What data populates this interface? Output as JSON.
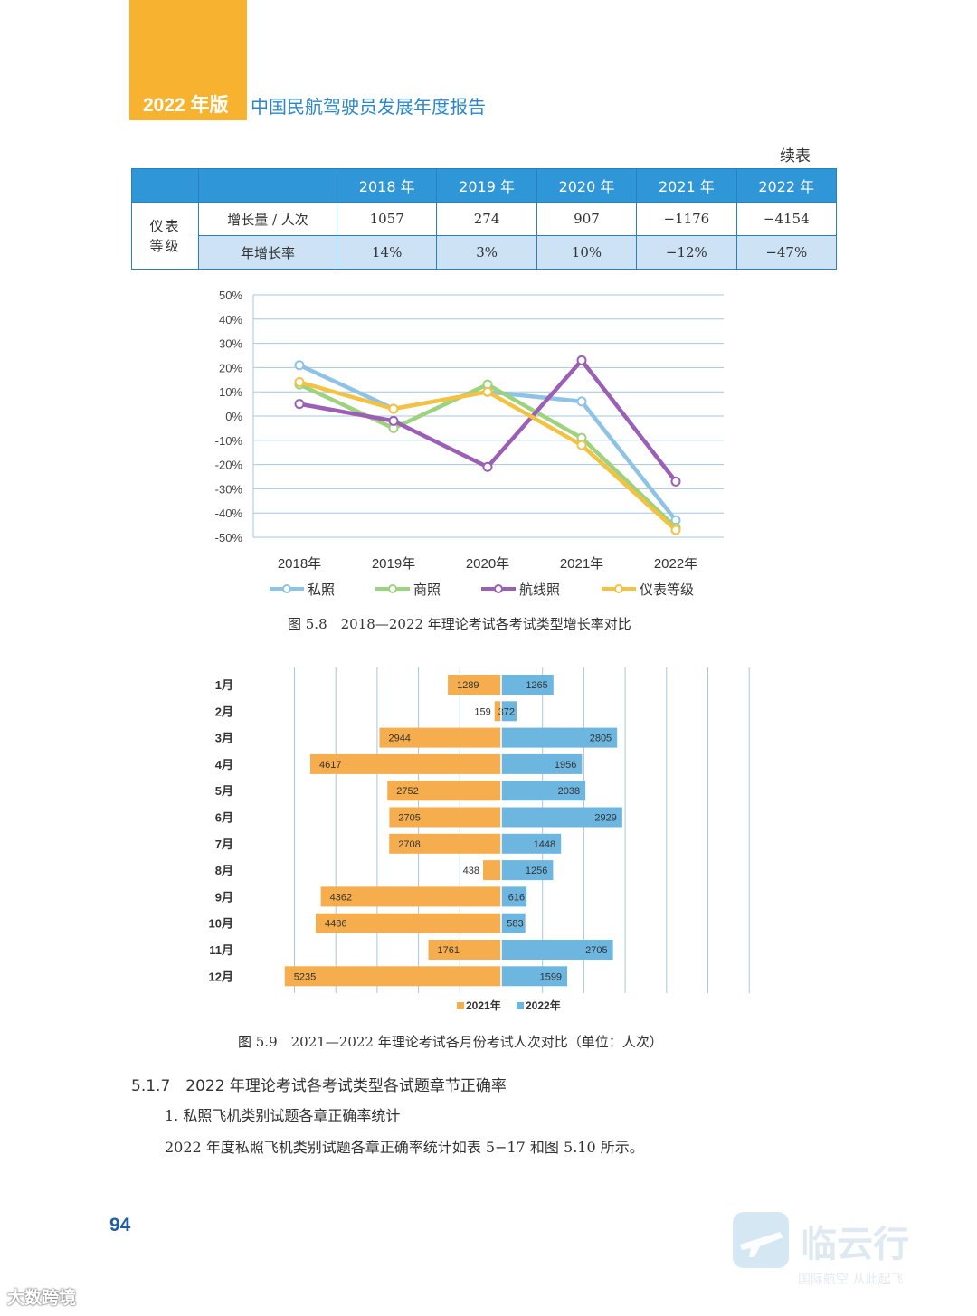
{
  "header": {
    "year": "2022 年版",
    "title": "中国民航驾驶员发展年度报告"
  },
  "table": {
    "continued": "续表",
    "columns": [
      "",
      "",
      "2018 年",
      "2019 年",
      "2020 年",
      "2021 年",
      "2022 年"
    ],
    "group": "仪表等级",
    "rows": [
      {
        "label": "增长量 / 人次",
        "values": [
          "1057",
          "274",
          "907",
          "−1176",
          "−4154"
        ]
      },
      {
        "label": "年增长率",
        "values": [
          "14%",
          "3%",
          "10%",
          "−12%",
          "−47%"
        ]
      }
    ]
  },
  "figure1": {
    "caption": "图 5.8　2018—2022 年理论考试各考试类型增长率对比"
  },
  "figure2": {
    "caption": "图 5.9　2021—2022 年理论考试各月份考试人次对比（单位：人次）"
  },
  "chart_data": [
    {
      "type": "line",
      "title": "",
      "x": [
        "2018年",
        "2019年",
        "2020年",
        "2021年",
        "2022年"
      ],
      "ylim": [
        -50,
        50
      ],
      "yticks": [
        "50%",
        "40%",
        "30%",
        "20%",
        "10%",
        "0%",
        "-10%",
        "-20%",
        "-30%",
        "-40%",
        "-50%"
      ],
      "series": [
        {
          "name": "私照",
          "color": "#8ec3e6",
          "values": [
            21,
            3,
            10,
            6,
            -43
          ]
        },
        {
          "name": "商照",
          "color": "#9dd27e",
          "values": [
            13,
            -5,
            13,
            -9,
            -46
          ]
        },
        {
          "name": "航线照",
          "color": "#9b5fb5",
          "values": [
            5,
            -2,
            -21,
            23,
            -27
          ]
        },
        {
          "name": "仪表等级",
          "color": "#f4c242",
          "values": [
            14,
            3,
            10,
            -12,
            -47
          ]
        }
      ]
    },
    {
      "type": "bar",
      "orientation": "horizontal-diverging",
      "categories": [
        "1月",
        "2月",
        "3月",
        "4月",
        "5月",
        "6月",
        "7月",
        "8月",
        "9月",
        "10月",
        "11月",
        "12月"
      ],
      "series": [
        {
          "name": "2021年",
          "color": "#f5ad4e",
          "values": [
            1289,
            159,
            2944,
            4617,
            2752,
            2705,
            2708,
            438,
            4362,
            4486,
            1761,
            5235
          ]
        },
        {
          "name": "2022年",
          "color": "#6cb6e0",
          "values": [
            1265,
            372,
            2805,
            1956,
            2038,
            2929,
            1448,
            1256,
            616,
            583,
            2705,
            1599
          ]
        }
      ]
    }
  ],
  "section": {
    "number_title": "5.1.7　2022 年理论考试各考试类型各试题章节正确率",
    "subtitle": "1. 私照飞机类别试题各章正确率统计",
    "paragraph": "2022 年度私照飞机类别试题各章正确率统计如表 5−17 和图 5.10 所示。"
  },
  "page_number": "94",
  "watermarks": {
    "brand": "临云行",
    "brand_sub": "国际航空  从此起飞",
    "corner": "大数跨境"
  }
}
